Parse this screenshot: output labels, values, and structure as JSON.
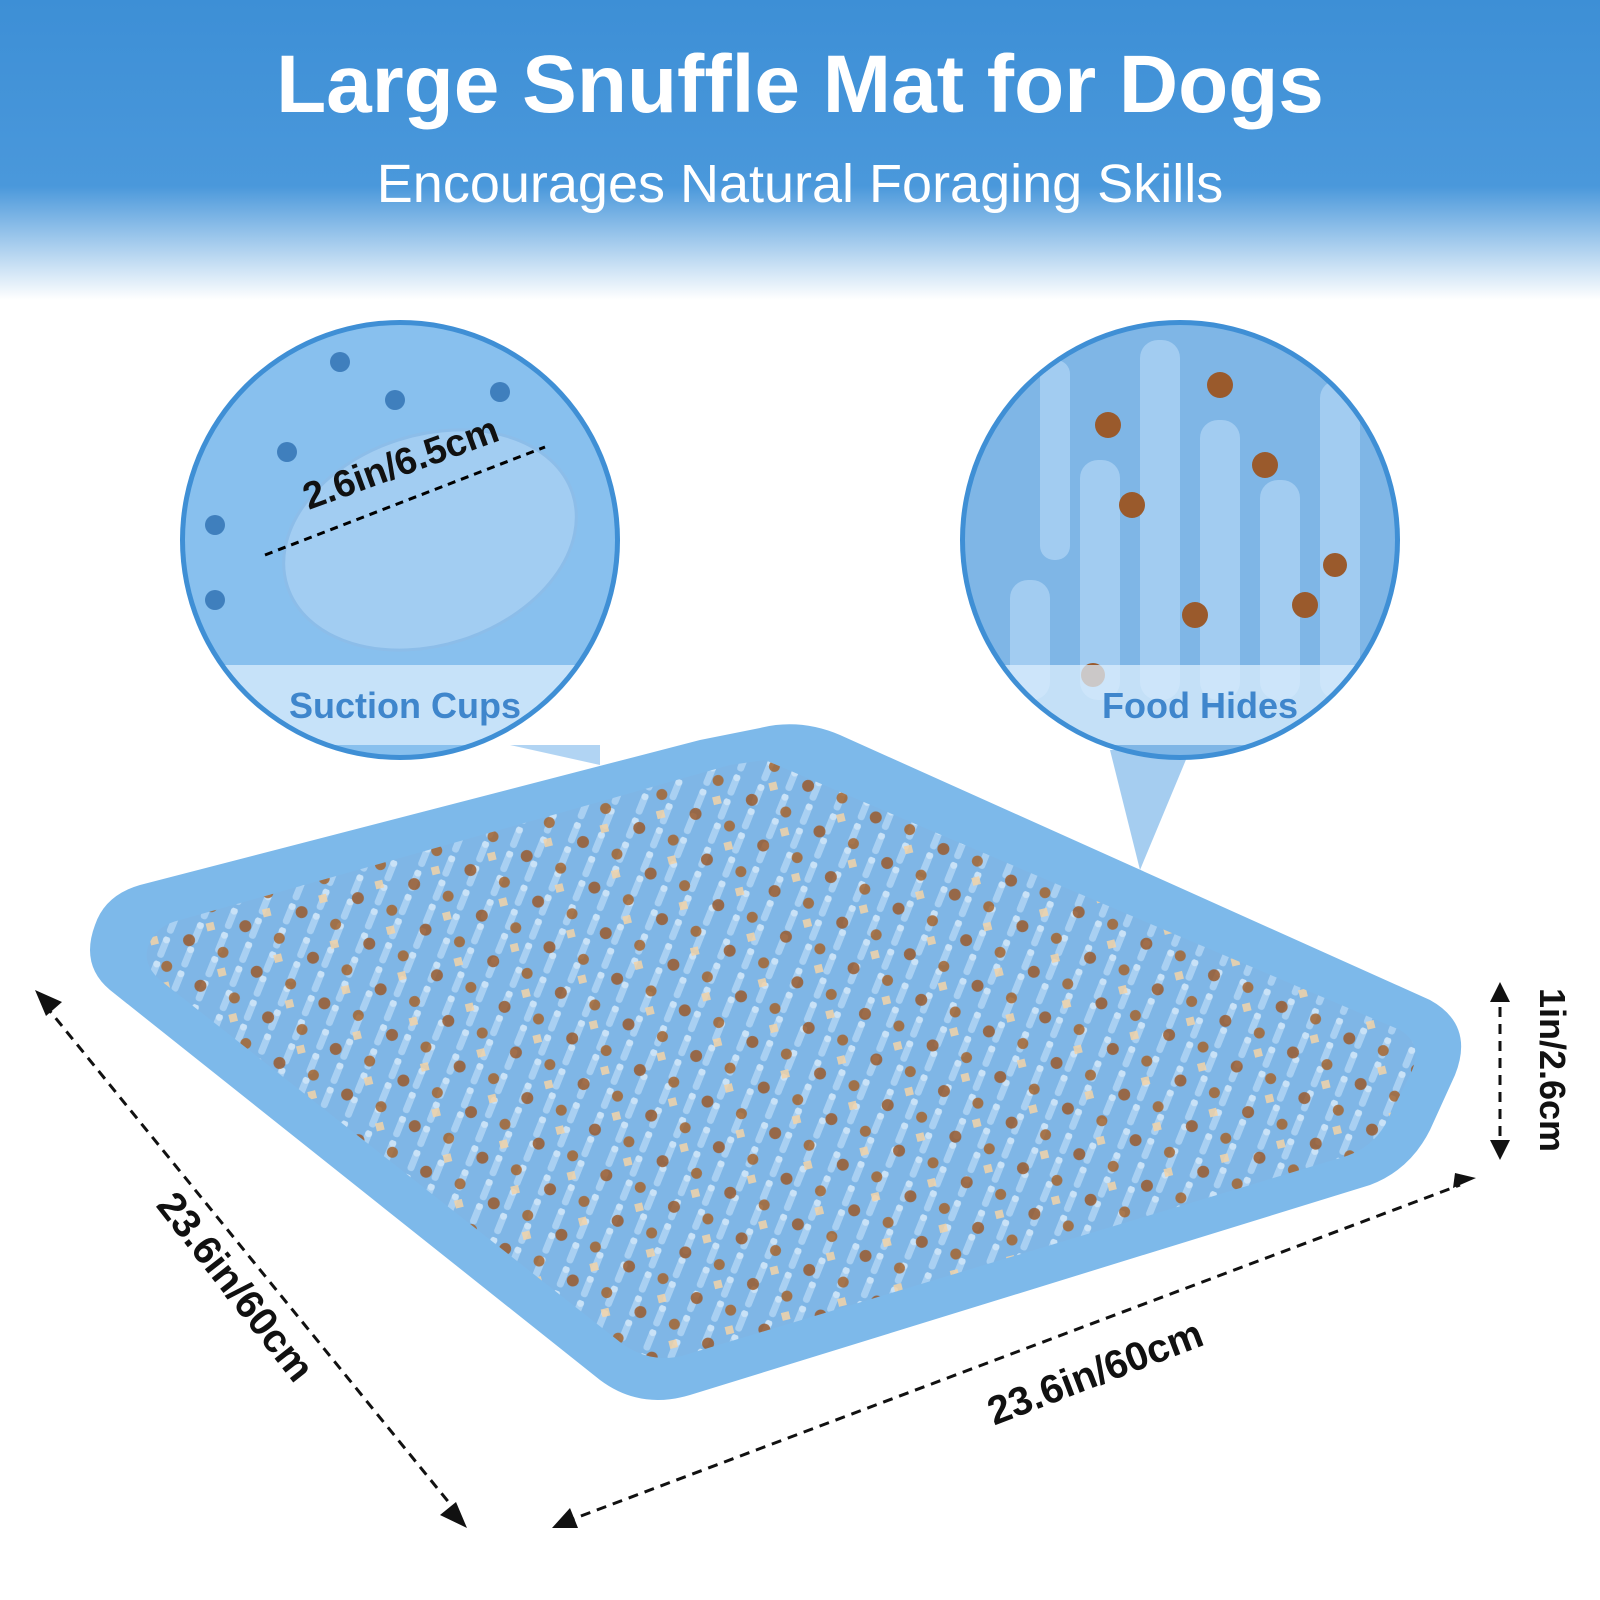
{
  "header": {
    "title": "Large Snuffle Mat for Dogs",
    "subtitle": "Encourages Natural Foraging Skills"
  },
  "callouts": [
    {
      "label": "Suction Cups",
      "dimension": "2.6in/6.5cm"
    },
    {
      "label": "Food Hides"
    }
  ],
  "dimensions": {
    "height": "1in/2.6cm",
    "length": "23.6in/60cm",
    "width": "23.6in/60cm"
  }
}
